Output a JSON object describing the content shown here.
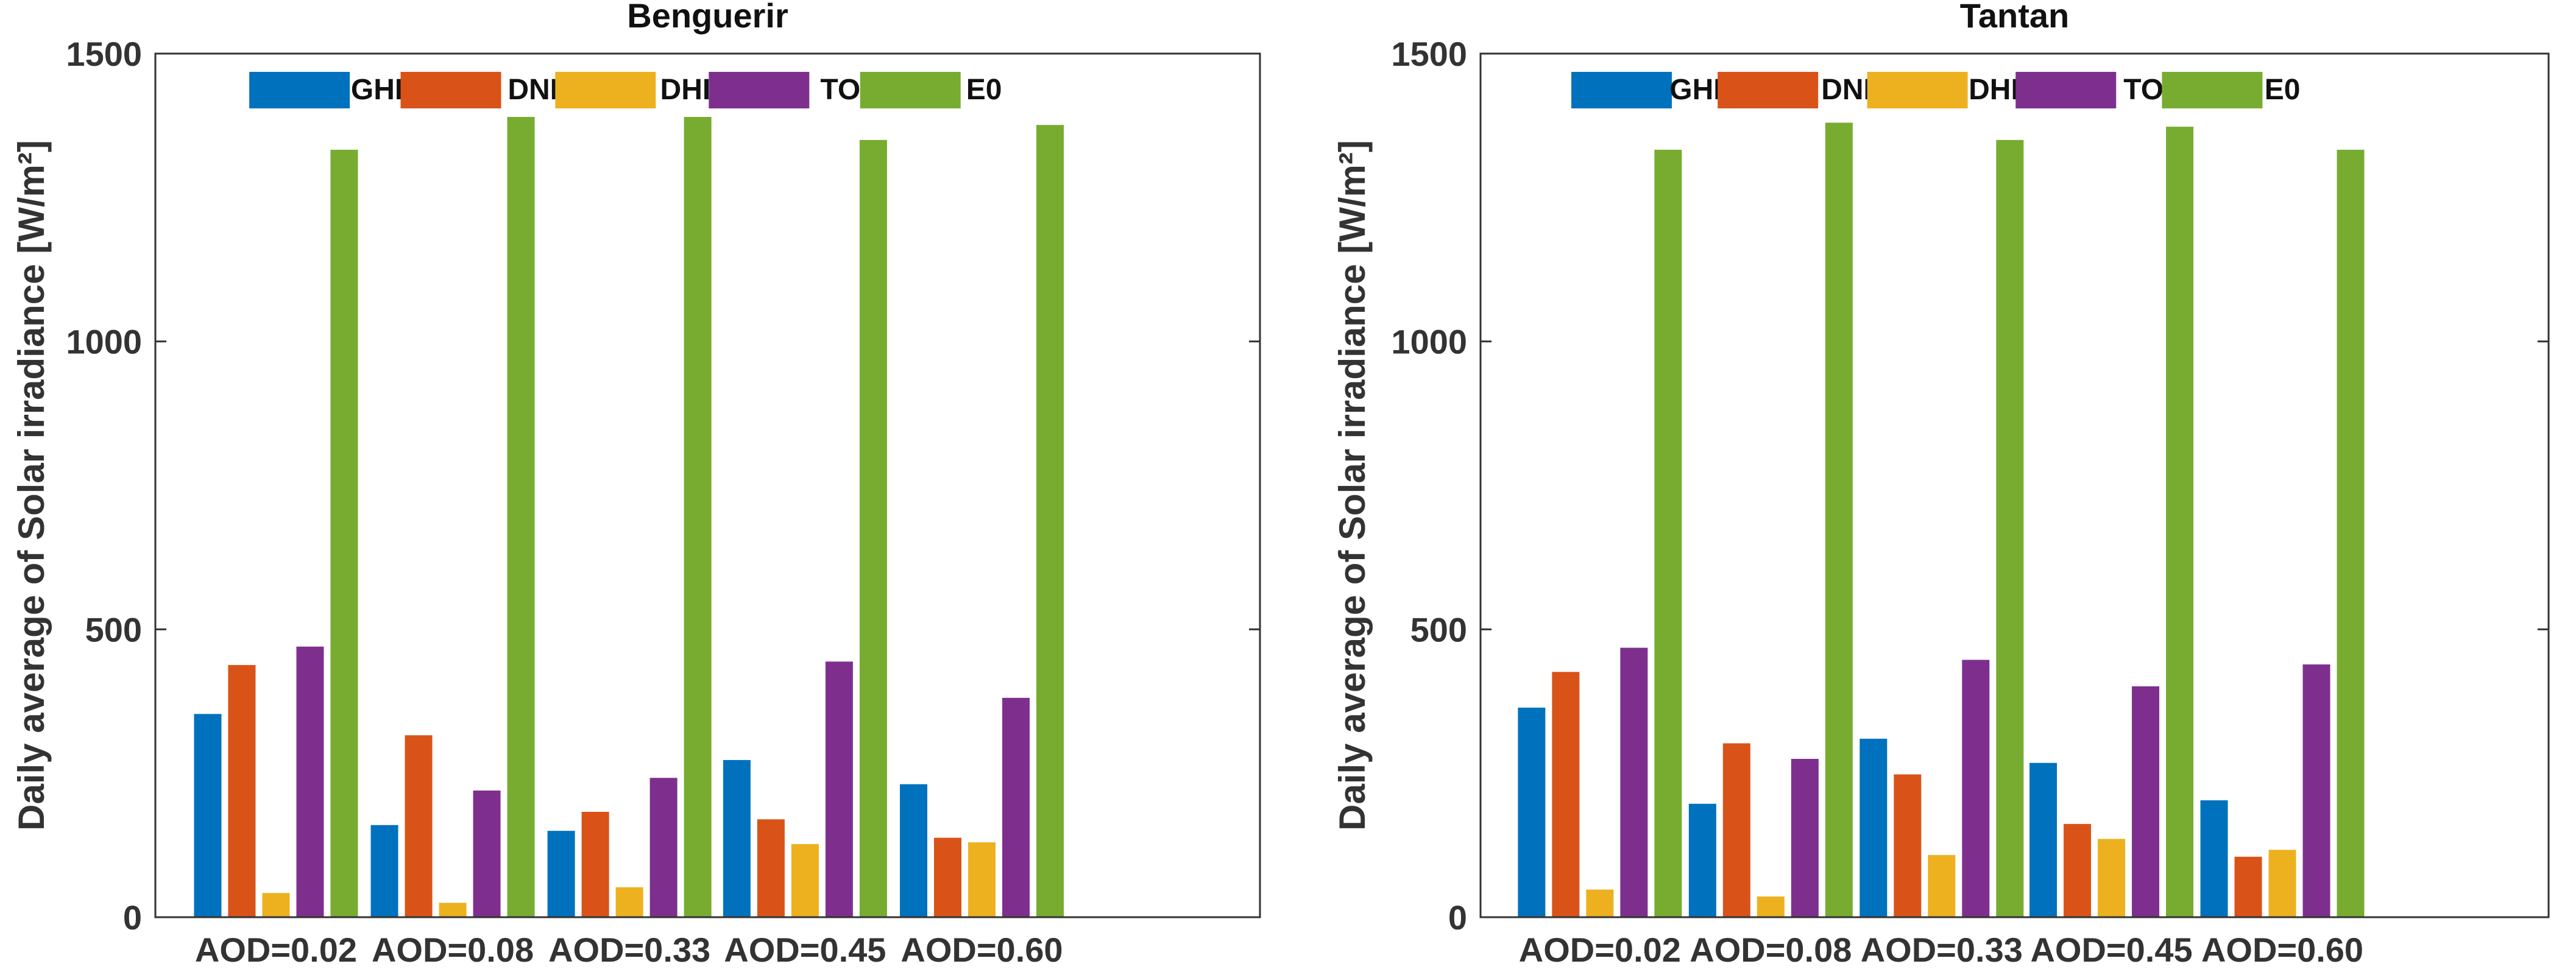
{
  "chart_data": [
    {
      "type": "bar",
      "title": "Benguerir",
      "xlabel": "",
      "ylabel": "Daily average of Solar irradiance [W/m²]",
      "ylim": [
        0,
        1500
      ],
      "yticks": [
        0,
        500,
        1000,
        1500
      ],
      "grid": false,
      "legend_position": "top",
      "categories": [
        "AOD=0.02",
        "AOD=0.08",
        "AOD=0.33",
        "AOD=0.45",
        "AOD=0.60"
      ],
      "series": [
        {
          "name": "GHI",
          "color": "#0072BD",
          "values": [
            353,
            160,
            150,
            273,
            231
          ]
        },
        {
          "name": "DNI",
          "color": "#D95319",
          "values": [
            438,
            316,
            183,
            170,
            138
          ]
        },
        {
          "name": "DHI",
          "color": "#EDB120",
          "values": [
            42,
            25,
            52,
            127,
            130
          ]
        },
        {
          "name": "TOA",
          "color": "#7E2F8E",
          "values": [
            470,
            220,
            242,
            444,
            381
          ]
        },
        {
          "name": "E0",
          "color": "#77AC30",
          "values": [
            1333,
            1390,
            1390,
            1350,
            1376
          ]
        }
      ]
    },
    {
      "type": "bar",
      "title": "Tantan",
      "xlabel": "",
      "ylabel": "Daily average of Solar irradiance [W/m²]",
      "ylim": [
        0,
        1500
      ],
      "yticks": [
        0,
        500,
        1000,
        1500
      ],
      "grid": false,
      "legend_position": "top",
      "categories": [
        "AOD=0.02",
        "AOD=0.08",
        "AOD=0.33",
        "AOD=0.45",
        "AOD=0.60"
      ],
      "series": [
        {
          "name": "GHI",
          "color": "#0072BD",
          "values": [
            364,
            197,
            310,
            268,
            203
          ]
        },
        {
          "name": "DNI",
          "color": "#D95319",
          "values": [
            426,
            302,
            248,
            162,
            105
          ]
        },
        {
          "name": "DHI",
          "color": "#EDB120",
          "values": [
            48,
            36,
            108,
            136,
            117
          ]
        },
        {
          "name": "TOA",
          "color": "#7E2F8E",
          "values": [
            468,
            275,
            447,
            401,
            439
          ]
        },
        {
          "name": "E0",
          "color": "#77AC30",
          "values": [
            1333,
            1380,
            1350,
            1373,
            1333
          ]
        }
      ]
    }
  ]
}
